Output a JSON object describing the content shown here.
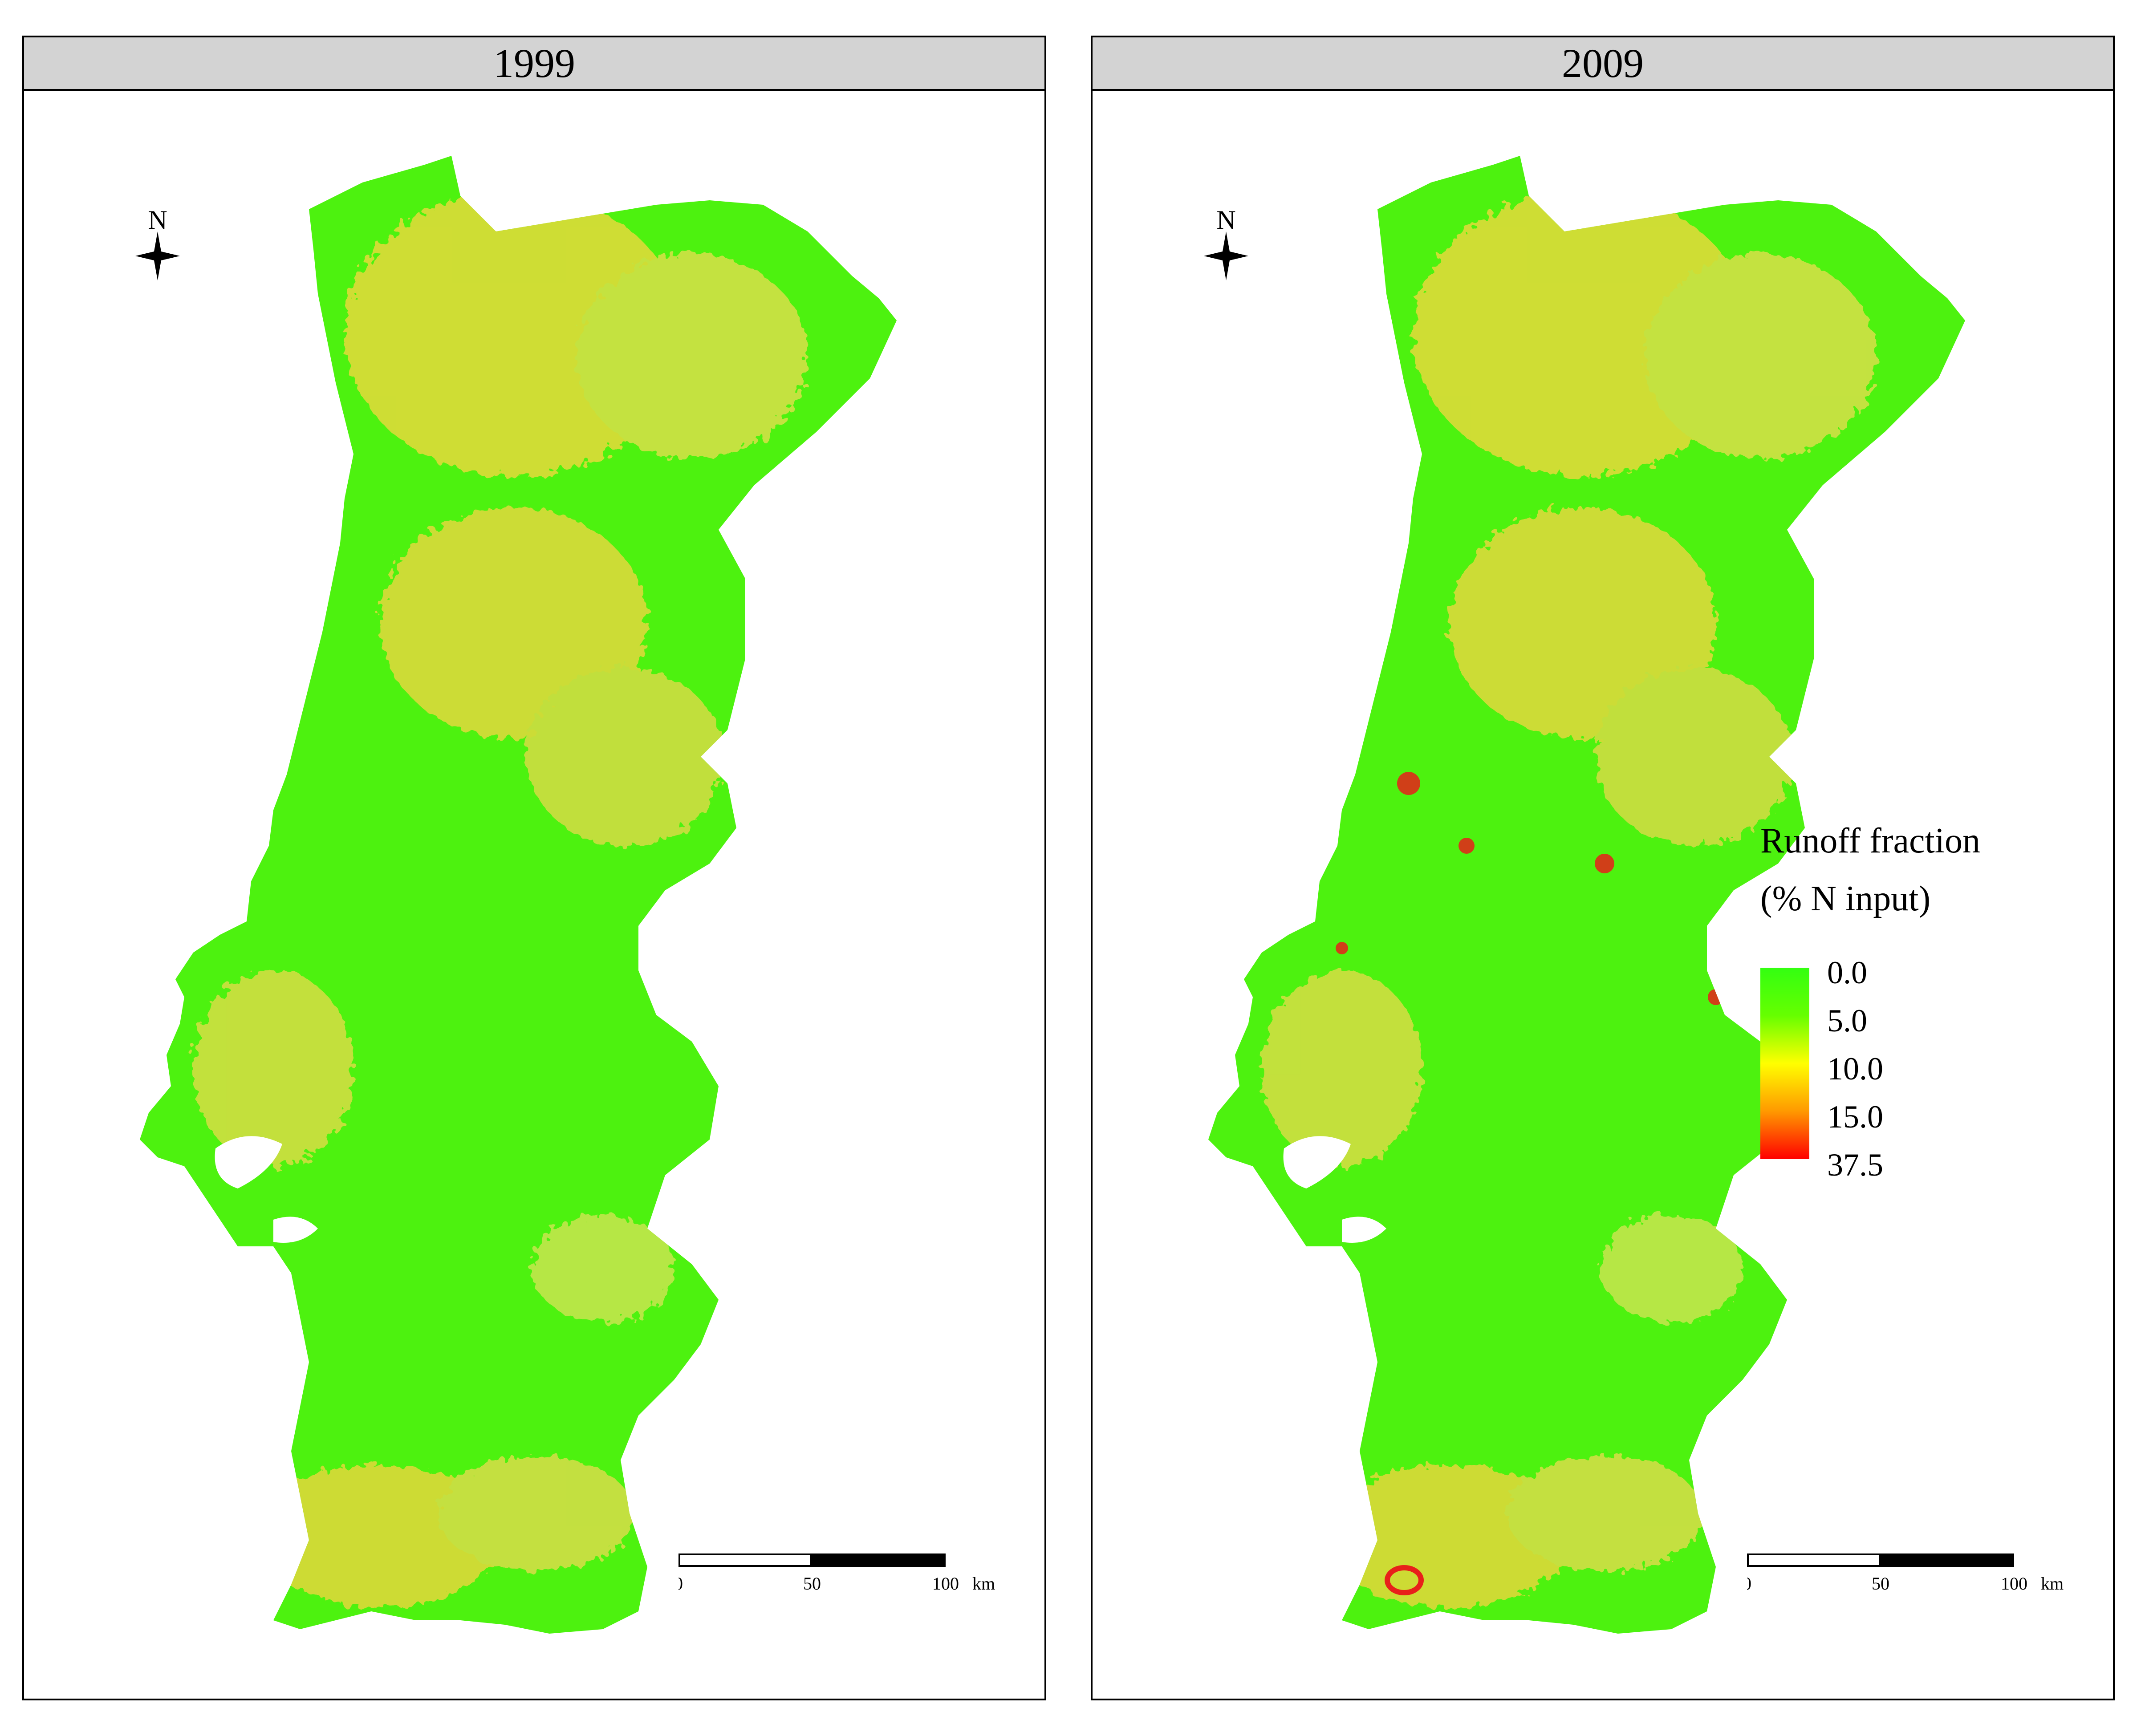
{
  "panels": [
    {
      "year": "1999"
    },
    {
      "year": "2009"
    }
  ],
  "north_arrow": {
    "label": "N"
  },
  "scale_bar": {
    "ticks": [
      "0",
      "50",
      "100"
    ],
    "unit": "km"
  },
  "legend": {
    "title_line1": "Runoff fraction",
    "title_line2": "(% N input)",
    "labels": [
      "0.0",
      "5.0",
      "10.0",
      "15.0",
      "37.5"
    ],
    "colors": [
      "#33ff11",
      "#66ff00",
      "#ffff00",
      "#ff9900",
      "#ff0000"
    ]
  },
  "map_colors": {
    "land": "#4df20f",
    "hotspot": "#f2d936",
    "high": "#e8201a"
  }
}
